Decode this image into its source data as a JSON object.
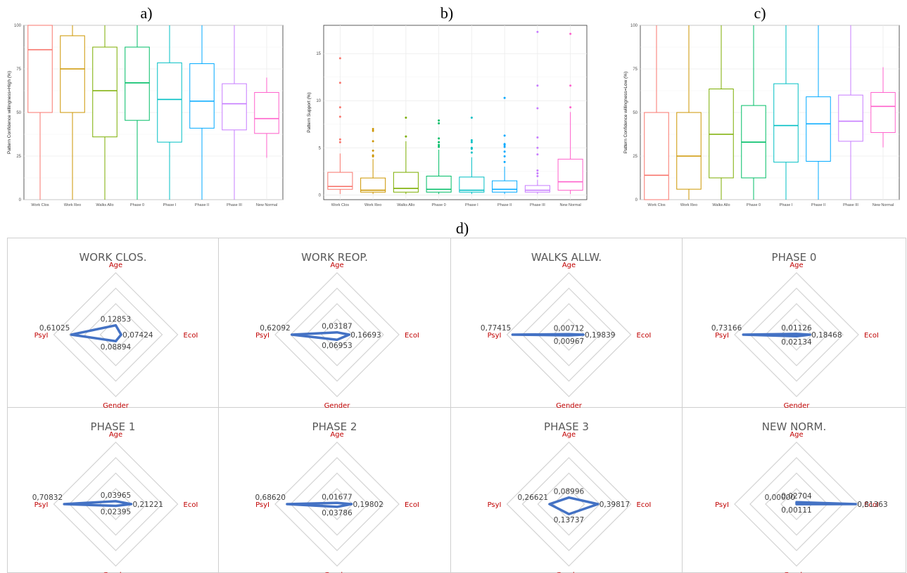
{
  "panel_letters": {
    "a": "a)",
    "b": "b)",
    "c": "c)",
    "d": "d)"
  },
  "chart_data": [
    {
      "type": "box",
      "panel": "a)",
      "ylabel": "Pattern Confidence willingness=High (%)",
      "ylim": [
        0,
        100
      ],
      "yticks": [
        0,
        25,
        50,
        75,
        100
      ],
      "categories": [
        "Work Clos",
        "Work Reo",
        "Walks Allo",
        "Phase 0",
        "Phase I",
        "Phase II",
        "Phase III",
        "New Normal"
      ],
      "colors": [
        "#F8766D",
        "#CD9600",
        "#7CAE00",
        "#00BE67",
        "#00BFC4",
        "#00A9FF",
        "#C77CFF",
        "#FF61CC"
      ],
      "boxes": [
        {
          "min": 0,
          "q1": 50,
          "median": 86,
          "q3": 100,
          "max": 100,
          "outliers": []
        },
        {
          "min": 0,
          "q1": 50,
          "median": 75,
          "q3": 94,
          "max": 100,
          "outliers": []
        },
        {
          "min": 0,
          "q1": 36,
          "median": 62.5,
          "q3": 87.5,
          "max": 100,
          "outliers": []
        },
        {
          "min": 0,
          "q1": 45.5,
          "median": 67,
          "q3": 87.5,
          "max": 100,
          "outliers": []
        },
        {
          "min": 0,
          "q1": 33,
          "median": 57.5,
          "q3": 78.5,
          "max": 100,
          "outliers": []
        },
        {
          "min": 0,
          "q1": 41,
          "median": 56.5,
          "q3": 78,
          "max": 100,
          "outliers": []
        },
        {
          "min": 0,
          "q1": 40,
          "median": 55,
          "q3": 66.5,
          "max": 100,
          "outliers": []
        },
        {
          "min": 24,
          "q1": 38,
          "median": 46.5,
          "q3": 61.5,
          "max": 70,
          "outliers": []
        }
      ]
    },
    {
      "type": "box",
      "panel": "b)",
      "ylabel": "Pattern Support (%)",
      "ylim": [
        -0.5,
        18
      ],
      "yticks": [
        0,
        5,
        10,
        15
      ],
      "categories": [
        "Work Clos",
        "Work Reo",
        "Walks Allo",
        "Phase 0",
        "Phase I",
        "Phase II",
        "Phase III",
        "New Normal"
      ],
      "colors": [
        "#F8766D",
        "#CD9600",
        "#7CAE00",
        "#00BE67",
        "#00BFC4",
        "#00A9FF",
        "#C77CFF",
        "#FF61CC"
      ],
      "boxes": [
        {
          "min": 0.1,
          "q1": 0.6,
          "median": 0.9,
          "q3": 2.4,
          "max": 4.4,
          "outliers": [
            5.6,
            5.9,
            8.3,
            9.3,
            11.9,
            14.5
          ]
        },
        {
          "min": 0.1,
          "q1": 0.3,
          "median": 0.5,
          "q3": 1.8,
          "max": 3.8,
          "outliers": [
            4.1,
            4.2,
            4.7,
            5.7,
            6.8,
            7.0
          ]
        },
        {
          "min": 0.1,
          "q1": 0.3,
          "median": 0.7,
          "q3": 2.4,
          "max": 5.7,
          "outliers": [
            6.2,
            8.2
          ]
        },
        {
          "min": 0.1,
          "q1": 0.3,
          "median": 0.6,
          "q3": 2.0,
          "max": 4.8,
          "outliers": [
            5.1,
            5.3,
            5.6,
            6.0,
            7.6,
            7.9
          ]
        },
        {
          "min": 0.1,
          "q1": 0.3,
          "median": 0.5,
          "q3": 1.9,
          "max": 4.0,
          "outliers": [
            4.5,
            4.9,
            5.0,
            5.6,
            5.8,
            8.2
          ]
        },
        {
          "min": 0.1,
          "q1": 0.3,
          "median": 0.6,
          "q3": 1.5,
          "max": 3.0,
          "outliers": [
            3.5,
            4.1,
            4.6,
            5.1,
            5.3,
            5.4,
            6.3,
            10.3
          ]
        },
        {
          "min": 0.1,
          "q1": 0.3,
          "median": 0.5,
          "q3": 1.0,
          "max": 1.6,
          "outliers": [
            2.0,
            2.3,
            2.6,
            4.3,
            5.0,
            6.1,
            9.2,
            11.6,
            17.3
          ]
        },
        {
          "min": 0.1,
          "q1": 0.5,
          "median": 1.4,
          "q3": 3.8,
          "max": 8.8,
          "outliers": [
            9.3,
            11.6,
            17.1
          ]
        }
      ]
    },
    {
      "type": "box",
      "panel": "c)",
      "ylabel": "Pattern Confidence willingness=Low (%)",
      "ylim": [
        0,
        100
      ],
      "yticks": [
        0,
        25,
        50,
        75,
        100
      ],
      "categories": [
        "Work Clos",
        "Work Reo",
        "Walks Allo",
        "Phase 0",
        "Phase I",
        "Phase II",
        "Phase III",
        "New Normal"
      ],
      "colors": [
        "#F8766D",
        "#CD9600",
        "#7CAE00",
        "#00BE67",
        "#00BFC4",
        "#00A9FF",
        "#C77CFF",
        "#FF61CC"
      ],
      "boxes": [
        {
          "min": 0,
          "q1": 0,
          "median": 14,
          "q3": 50,
          "max": 100,
          "outliers": []
        },
        {
          "min": 0,
          "q1": 6,
          "median": 25,
          "q3": 50,
          "max": 100,
          "outliers": []
        },
        {
          "min": 0,
          "q1": 12.5,
          "median": 37.5,
          "q3": 63.5,
          "max": 100,
          "outliers": []
        },
        {
          "min": 0,
          "q1": 12.5,
          "median": 33,
          "q3": 54,
          "max": 100,
          "outliers": []
        },
        {
          "min": 0,
          "q1": 21.5,
          "median": 42.5,
          "q3": 66.5,
          "max": 100,
          "outliers": []
        },
        {
          "min": 0,
          "q1": 22,
          "median": 43.5,
          "q3": 59,
          "max": 100,
          "outliers": []
        },
        {
          "min": 0,
          "q1": 33.5,
          "median": 45,
          "q3": 60,
          "max": 100,
          "outliers": []
        },
        {
          "min": 30,
          "q1": 38.5,
          "median": 53.5,
          "q3": 61.5,
          "max": 76,
          "outliers": []
        }
      ]
    },
    {
      "type": "radar",
      "panel": "d)",
      "axes": [
        "Age",
        "EcoI",
        "Gender",
        "PsyI"
      ],
      "line_color": "#4472C4",
      "axis_label_color": "#C00000",
      "grid_color": "#D3D3D3",
      "rmax": 0.85,
      "charts": [
        {
          "title": "WORK CLOS.",
          "values": [
            0.12853,
            0.07424,
            0.08894,
            0.61025
          ],
          "labels": [
            "0,12853",
            "0,07424",
            "0,08894",
            "0,61025"
          ]
        },
        {
          "title": "WORK REOP.",
          "values": [
            0.03187,
            0.16693,
            0.06953,
            0.62092
          ],
          "labels": [
            "0,03187",
            "0,16693",
            "0,06953",
            "0,62092"
          ]
        },
        {
          "title": "WALKS ALLW.",
          "values": [
            0.00712,
            0.19839,
            0.00967,
            0.77415
          ],
          "labels": [
            "0,00712",
            "0,19839",
            "0,00967",
            "0,77415"
          ]
        },
        {
          "title": "PHASE 0",
          "values": [
            0.01126,
            0.18468,
            0.02134,
            0.73166
          ],
          "labels": [
            "0,01126",
            "0,18468",
            "0,02134",
            "0,73166"
          ]
        },
        {
          "title": "PHASE 1",
          "values": [
            0.03965,
            0.21221,
            0.02395,
            0.70832
          ],
          "labels": [
            "0,03965",
            "0,21221",
            "0,02395",
            "0,70832"
          ]
        },
        {
          "title": "PHASE 2",
          "values": [
            0.01677,
            0.19802,
            0.03786,
            0.6862
          ],
          "labels": [
            "0,01677",
            "0,19802",
            "0,03786",
            "0,68620"
          ]
        },
        {
          "title": "PHASE 3",
          "values": [
            0.08996,
            0.39817,
            0.13737,
            0.26621
          ],
          "labels": [
            "0,08996",
            "0,39817",
            "0,13737",
            "0,26621"
          ]
        },
        {
          "title": "NEW NORM.",
          "values": [
            0.02704,
            0.81363,
            0.00111,
            0.0
          ],
          "labels": [
            "0,02704",
            "0,81363",
            "0,00111",
            "0,00000"
          ]
        }
      ]
    }
  ]
}
